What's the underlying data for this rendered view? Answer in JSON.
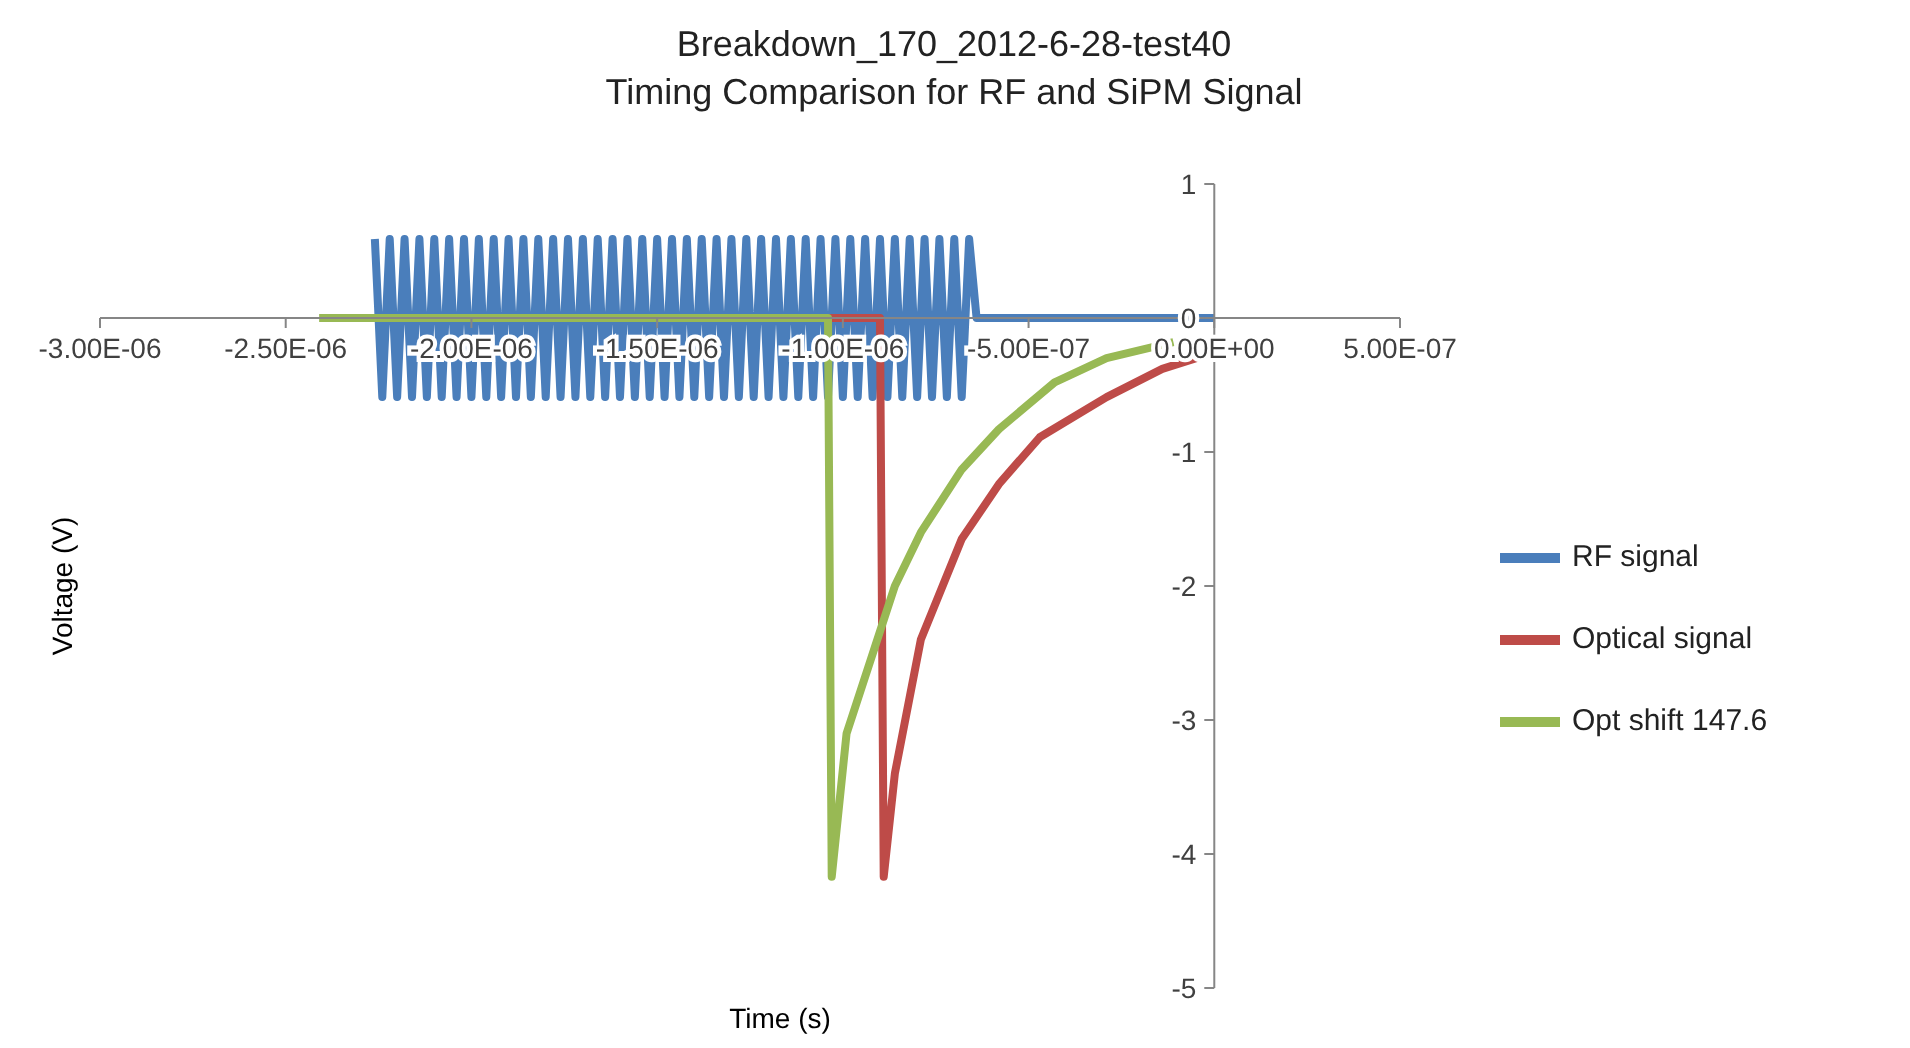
{
  "chart_data": {
    "type": "line",
    "title": "Breakdown_170_2012-6-28-test40",
    "subtitle": "Timing Comparison for RF and SiPM Signal",
    "xlabel": "Time (s)",
    "ylabel": "Voltage (V)",
    "xlim": [
      -3e-06,
      5e-07
    ],
    "xticks": [
      {
        "value": -3e-06,
        "label": "-3.00E-06"
      },
      {
        "value": -2.5e-06,
        "label": "-2.50E-06"
      },
      {
        "value": -2e-06,
        "label": "-2.00E-06"
      },
      {
        "value": -1.5e-06,
        "label": "-1.50E-06"
      },
      {
        "value": -1e-06,
        "label": "-1.00E-06"
      },
      {
        "value": -5e-07,
        "label": "-5.00E-07"
      },
      {
        "value": 0,
        "label": "0.00E+00"
      },
      {
        "value": 5e-07,
        "label": "5.00E-07"
      }
    ],
    "ylim": [
      -5,
      1
    ],
    "yticks": [
      1,
      0,
      -1,
      -2,
      -3,
      -4,
      -5
    ],
    "legend": "right",
    "line_style": "solid",
    "series": [
      {
        "name": "RF signal",
        "color": "#4a7ebb",
        "x": [
          -2.26e-06,
          -2.24e-06,
          -2.22e-06,
          -2.2e-06,
          -2.18e-06,
          -2.16e-06,
          -2.14e-06,
          -2.12e-06,
          -2.1e-06,
          -2.08e-06,
          -2.06e-06,
          -2.04e-06,
          -2.02e-06,
          -2e-06,
          -1.98e-06,
          -1.96e-06,
          -1.94e-06,
          -1.92e-06,
          -1.9e-06,
          -1.88e-06,
          -1.86e-06,
          -1.84e-06,
          -1.82e-06,
          -1.8e-06,
          -1.78e-06,
          -1.76e-06,
          -1.74e-06,
          -1.72e-06,
          -1.7e-06,
          -1.68e-06,
          -1.66e-06,
          -1.64e-06,
          -1.62e-06,
          -1.6e-06,
          -1.58e-06,
          -1.56e-06,
          -1.54e-06,
          -1.52e-06,
          -1.5e-06,
          -1.48e-06,
          -1.46e-06,
          -1.44e-06,
          -1.42e-06,
          -1.4e-06,
          -1.38e-06,
          -1.36e-06,
          -1.34e-06,
          -1.32e-06,
          -1.3e-06,
          -1.28e-06,
          -1.26e-06,
          -1.24e-06,
          -1.22e-06,
          -1.2e-06,
          -1.18e-06,
          -1.16e-06,
          -1.14e-06,
          -1.12e-06,
          -1.1e-06,
          -1.08e-06,
          -1.06e-06,
          -1.04e-06,
          -1.02e-06,
          -1e-06,
          -9.8e-07,
          -9.6e-07,
          -9.4e-07,
          -9.2e-07,
          -9e-07,
          -8.8e-07,
          -8.6e-07,
          -8.4e-07,
          -8.2e-07,
          -8e-07,
          -7.8e-07,
          -7.6e-07,
          -7.4e-07,
          -7.2e-07,
          -7e-07,
          -6.8e-07,
          -6.6e-07,
          -6.4e-07,
          0
        ],
        "values": [
          0.59,
          -0.59,
          0.59,
          -0.59,
          0.59,
          -0.59,
          0.59,
          -0.59,
          0.59,
          -0.59,
          0.59,
          -0.59,
          0.59,
          -0.59,
          0.59,
          -0.59,
          0.59,
          -0.59,
          0.59,
          -0.59,
          0.59,
          -0.59,
          0.59,
          -0.59,
          0.59,
          -0.59,
          0.59,
          -0.59,
          0.59,
          -0.59,
          0.59,
          -0.59,
          0.59,
          -0.59,
          0.59,
          -0.59,
          0.59,
          -0.59,
          0.59,
          -0.59,
          0.59,
          -0.59,
          0.59,
          -0.59,
          0.59,
          -0.59,
          0.59,
          -0.59,
          0.59,
          -0.59,
          0.59,
          -0.59,
          0.59,
          -0.59,
          0.59,
          -0.59,
          0.59,
          -0.59,
          0.59,
          -0.59,
          0.59,
          -0.59,
          0.59,
          -0.59,
          0.59,
          -0.59,
          0.59,
          -0.59,
          0.59,
          -0.59,
          0.59,
          -0.59,
          0.59,
          -0.59,
          0.59,
          -0.59,
          0.59,
          -0.59,
          0.59,
          -0.59,
          0.59,
          0,
          0
        ]
      },
      {
        "name": "Optical signal",
        "color": "#be4b48",
        "x": [
          -2.4e-06,
          -9e-07,
          -8.9e-07,
          -8.6e-07,
          -7.9e-07,
          -6.8e-07,
          -5.8e-07,
          -4.7e-07,
          -2.9e-07,
          -1.4e-07,
          3e-08
        ],
        "values": [
          0,
          0,
          -4.17,
          -3.4,
          -2.4,
          -1.65,
          -1.24,
          -0.89,
          -0.59,
          -0.38,
          -0.23
        ]
      },
      {
        "name": "Opt shift 147.6",
        "color": "#98b954",
        "x": [
          -2.41e-06,
          -1.04e-06,
          -1.03e-06,
          -9.9e-07,
          -8.6e-07,
          -7.9e-07,
          -6.8e-07,
          -5.8e-07,
          -4.3e-07,
          -2.9e-07,
          -1.1e-07
        ],
        "values": [
          0,
          0,
          -4.17,
          -3.1,
          -2.0,
          -1.6,
          -1.13,
          -0.83,
          -0.48,
          -0.3,
          -0.18
        ]
      }
    ]
  }
}
